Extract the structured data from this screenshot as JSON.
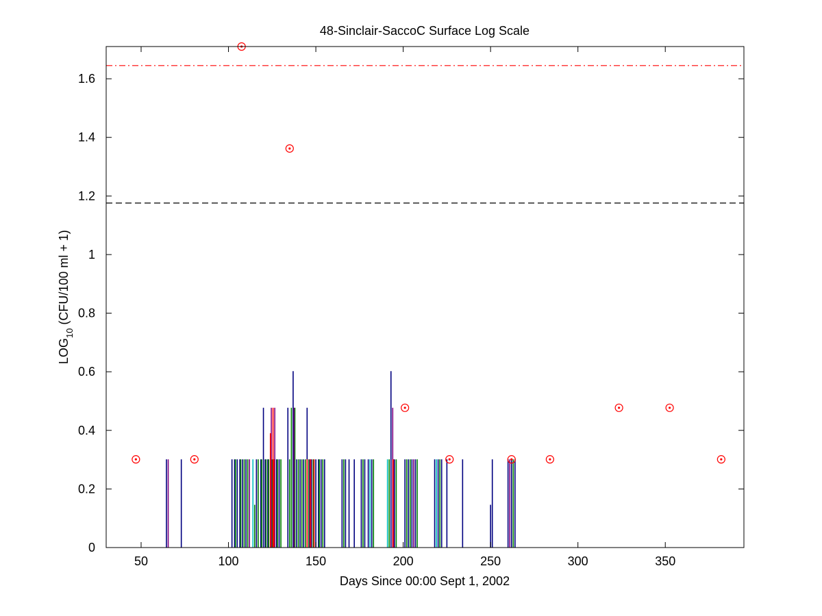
{
  "chart_data": {
    "type": "bar",
    "title": "48-Sinclair-SaccoC Surface Log Scale",
    "xlabel": "Days Since 00:00 Sept 1, 2002",
    "ylabel_main": "LOG",
    "ylabel_sub": "10",
    "ylabel_rest": " (CFU/100 ml + 1)",
    "xlim": [
      30,
      395
    ],
    "ylim": [
      0,
      1.71
    ],
    "xticks": [
      50,
      100,
      150,
      200,
      250,
      300,
      350
    ],
    "yticks": [
      0,
      0.2,
      0.4,
      0.6,
      0.8,
      1,
      1.2,
      1.4,
      1.6
    ],
    "ytick_labels": [
      "0",
      "0.2",
      "0.4",
      "0.6",
      "0.8",
      "1",
      "1.2",
      "1.4",
      "1.6"
    ],
    "grid": false,
    "series": [
      {
        "color": "#00007f",
        "x": [
          64.5,
          73,
          102,
          103.5,
          105,
          106.5,
          108,
          110,
          116,
          118.5,
          120,
          121,
          122.5,
          124,
          126,
          127.5,
          129,
          134,
          137,
          139,
          141,
          143,
          145,
          147.5,
          150,
          151.5,
          153,
          155,
          165,
          167,
          169,
          172,
          176,
          178,
          180,
          182,
          193,
          195,
          201,
          203,
          205,
          207,
          218,
          220,
          222,
          225,
          234,
          250,
          251,
          260,
          262,
          264
        ],
        "values": [
          0.301,
          0.301,
          0.301,
          0.301,
          0.301,
          0.301,
          0.301,
          0.301,
          0.301,
          0.301,
          0.477,
          0.301,
          0.301,
          0.301,
          0.301,
          0.301,
          0.301,
          0.477,
          0.602,
          0.301,
          0.301,
          0.301,
          0.477,
          0.301,
          0.301,
          0.301,
          0.301,
          0.301,
          0.301,
          0.301,
          0.301,
          0.301,
          0.301,
          0.301,
          0.301,
          0.301,
          0.602,
          0.301,
          0.301,
          0.301,
          0.301,
          0.301,
          0.301,
          0.301,
          0.301,
          0.301,
          0.301,
          0.146,
          0.301,
          0.301,
          0.301,
          0.301
        ]
      },
      {
        "color": "#007f00",
        "x": [
          104,
          107,
          109,
          111,
          115,
          117,
          119,
          121.5,
          123,
          125,
          128,
          130,
          135,
          136,
          138,
          140,
          142,
          144,
          146,
          148.5,
          152,
          154,
          166,
          177,
          183,
          192,
          196,
          202,
          204,
          208,
          221,
          263
        ],
        "values": [
          0.301,
          0.301,
          0.301,
          0.301,
          0.146,
          0.301,
          0.301,
          0.301,
          0.301,
          0.301,
          0.301,
          0.301,
          0.301,
          0.477,
          0.477,
          0.301,
          0.301,
          0.301,
          0.301,
          0.301,
          0.301,
          0.301,
          0.301,
          0.301,
          0.301,
          0.301,
          0.301,
          0.301,
          0.301,
          0.301,
          0.301,
          0.301
        ]
      },
      {
        "color": "#7f007f",
        "x": [
          65.5,
          112,
          124.5,
          126.5,
          137.5,
          146.5,
          194,
          194.5,
          206,
          261
        ],
        "values": [
          0.301,
          0.301,
          0.477,
          0.477,
          0.477,
          0.301,
          0.477,
          0.301,
          0.301,
          0.301
        ]
      },
      {
        "color": "#ff0000",
        "x": [
          124,
          125.5,
          126,
          145,
          147,
          149,
          194.2
        ],
        "values": [
          0.39,
          0.477,
          0.301,
          0.301,
          0.301,
          0.301,
          0.301
        ]
      },
      {
        "color": "#00bfbf",
        "x": [
          114,
          181,
          191,
          219
        ],
        "values": [
          0.301,
          0.301,
          0.301,
          0.301
        ]
      }
    ],
    "markers": {
      "color": "#ff0000",
      "x": [
        47,
        80.5,
        107.5,
        135,
        201,
        226.5,
        262,
        284,
        323.5,
        352.5,
        382
      ],
      "values": [
        0.301,
        0.301,
        1.71,
        1.362,
        0.477,
        0.301,
        0.301,
        0.301,
        0.477,
        0.477,
        0.301
      ]
    },
    "reference_lines": [
      {
        "value": 1.176,
        "color": "#000000",
        "style": "dashed"
      },
      {
        "value": 1.645,
        "color": "#ff0000",
        "style": "dash-dot"
      }
    ]
  }
}
